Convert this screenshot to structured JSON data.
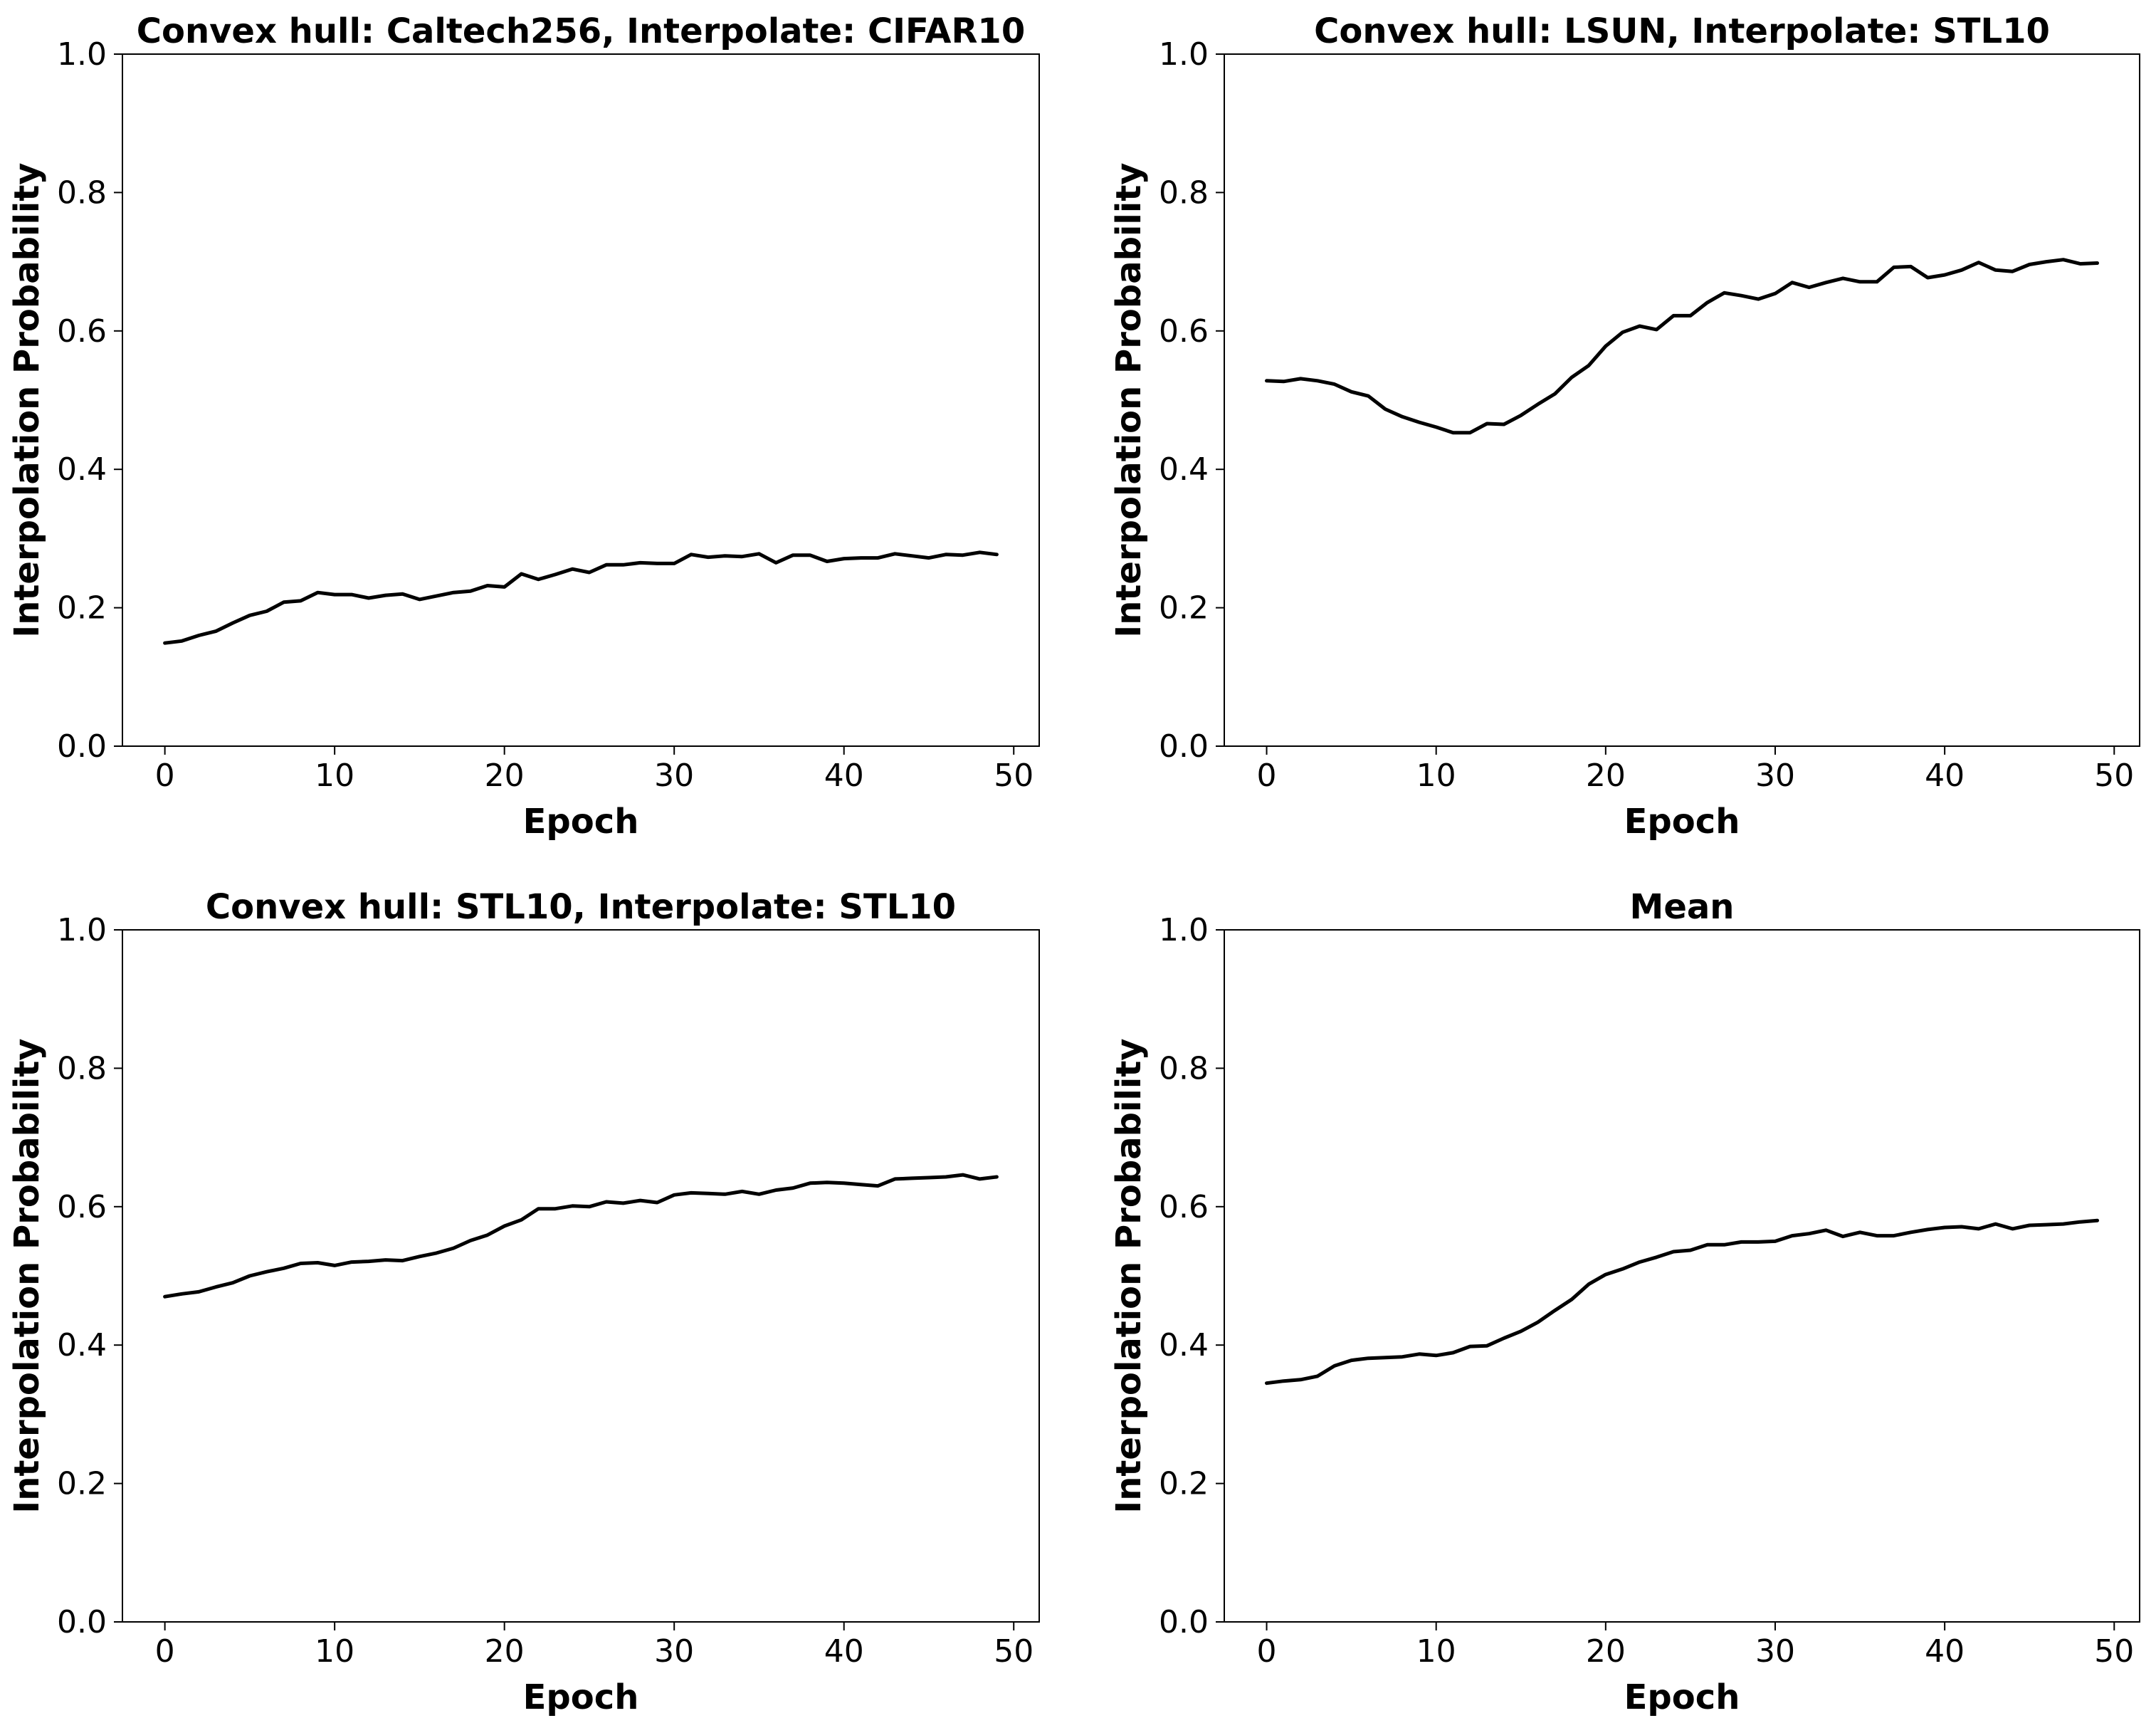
{
  "chart_data": [
    {
      "type": "line",
      "title": "Convex hull: Caltech256, Interpolate: CIFAR10",
      "xlabel": "Epoch",
      "ylabel": "Interpolation Probability",
      "xlim": [
        -2.5,
        51.5
      ],
      "ylim": [
        0.0,
        1.0
      ],
      "xticks": [
        0,
        10,
        20,
        30,
        40,
        50
      ],
      "yticks": [
        0.0,
        0.2,
        0.4,
        0.6,
        0.8,
        1.0
      ],
      "xtick_labels": [
        "0",
        "10",
        "20",
        "30",
        "40",
        "50"
      ],
      "ytick_labels": [
        "0.0",
        "0.2",
        "0.4",
        "0.6",
        "0.8",
        "1.0"
      ],
      "grid": false,
      "color": "#000000",
      "series": [
        {
          "x": [
            0,
            1,
            2,
            3,
            4,
            5,
            6,
            7,
            8,
            9,
            10,
            11,
            12,
            13,
            14,
            15,
            16,
            17,
            18,
            19,
            20,
            21,
            22,
            23,
            24,
            25,
            26,
            27,
            28,
            29,
            30,
            31,
            32,
            33,
            34,
            35,
            36,
            37,
            38,
            39,
            40,
            41,
            42,
            43,
            44,
            45,
            46,
            47,
            48,
            49
          ],
          "values": [
            0.149,
            0.152,
            0.16,
            0.166,
            0.178,
            0.189,
            0.195,
            0.208,
            0.21,
            0.222,
            0.219,
            0.219,
            0.214,
            0.218,
            0.22,
            0.212,
            0.217,
            0.222,
            0.224,
            0.232,
            0.23,
            0.249,
            0.241,
            0.248,
            0.256,
            0.251,
            0.262,
            0.262,
            0.265,
            0.264,
            0.264,
            0.277,
            0.273,
            0.275,
            0.274,
            0.278,
            0.265,
            0.276,
            0.276,
            0.267,
            0.271,
            0.272,
            0.272,
            0.278,
            0.275,
            0.272,
            0.277,
            0.276,
            0.28,
            0.277
          ]
        }
      ]
    },
    {
      "type": "line",
      "title": "Convex hull: LSUN, Interpolate: STL10",
      "xlabel": "Epoch",
      "ylabel": "Interpolation Probability",
      "xlim": [
        -2.5,
        51.5
      ],
      "ylim": [
        0.0,
        1.0
      ],
      "xticks": [
        0,
        10,
        20,
        30,
        40,
        50
      ],
      "yticks": [
        0.0,
        0.2,
        0.4,
        0.6,
        0.8,
        1.0
      ],
      "xtick_labels": [
        "0",
        "10",
        "20",
        "30",
        "40",
        "50"
      ],
      "ytick_labels": [
        "0.0",
        "0.2",
        "0.4",
        "0.6",
        "0.8",
        "1.0"
      ],
      "grid": false,
      "color": "#000000",
      "series": [
        {
          "x": [
            0,
            1,
            2,
            3,
            4,
            5,
            6,
            7,
            8,
            9,
            10,
            11,
            12,
            13,
            14,
            15,
            16,
            17,
            18,
            19,
            20,
            21,
            22,
            23,
            24,
            25,
            26,
            27,
            28,
            29,
            30,
            31,
            32,
            33,
            34,
            35,
            36,
            37,
            38,
            39,
            40,
            41,
            42,
            43,
            44,
            45,
            46,
            47,
            48,
            49
          ],
          "values": [
            0.528,
            0.527,
            0.531,
            0.528,
            0.523,
            0.512,
            0.506,
            0.487,
            0.476,
            0.468,
            0.461,
            0.453,
            0.453,
            0.466,
            0.465,
            0.478,
            0.494,
            0.509,
            0.533,
            0.55,
            0.578,
            0.598,
            0.607,
            0.602,
            0.622,
            0.622,
            0.641,
            0.655,
            0.651,
            0.646,
            0.654,
            0.67,
            0.663,
            0.67,
            0.676,
            0.671,
            0.671,
            0.692,
            0.693,
            0.677,
            0.681,
            0.688,
            0.699,
            0.688,
            0.686,
            0.696,
            0.7,
            0.703,
            0.697,
            0.698
          ]
        }
      ]
    },
    {
      "type": "line",
      "title": "Convex hull: STL10, Interpolate: STL10",
      "xlabel": "Epoch",
      "ylabel": "Interpolation Probability",
      "xlim": [
        -2.5,
        51.5
      ],
      "ylim": [
        0.0,
        1.0
      ],
      "xticks": [
        0,
        10,
        20,
        30,
        40,
        50
      ],
      "yticks": [
        0.0,
        0.2,
        0.4,
        0.6,
        0.8,
        1.0
      ],
      "xtick_labels": [
        "0",
        "10",
        "20",
        "30",
        "40",
        "50"
      ],
      "ytick_labels": [
        "0.0",
        "0.2",
        "0.4",
        "0.6",
        "0.8",
        "1.0"
      ],
      "grid": false,
      "color": "#000000",
      "series": [
        {
          "x": [
            0,
            1,
            2,
            3,
            4,
            5,
            6,
            7,
            8,
            9,
            10,
            11,
            12,
            13,
            14,
            15,
            16,
            17,
            18,
            19,
            20,
            21,
            22,
            23,
            24,
            25,
            26,
            27,
            28,
            29,
            30,
            31,
            32,
            33,
            34,
            35,
            36,
            37,
            38,
            39,
            40,
            41,
            42,
            43,
            44,
            45,
            46,
            47,
            48,
            49
          ],
          "values": [
            0.47,
            0.474,
            0.477,
            0.484,
            0.49,
            0.5,
            0.506,
            0.511,
            0.518,
            0.519,
            0.515,
            0.52,
            0.521,
            0.523,
            0.522,
            0.528,
            0.533,
            0.54,
            0.551,
            0.559,
            0.572,
            0.581,
            0.597,
            0.597,
            0.601,
            0.6,
            0.607,
            0.605,
            0.609,
            0.606,
            0.617,
            0.62,
            0.619,
            0.618,
            0.622,
            0.618,
            0.624,
            0.627,
            0.634,
            0.635,
            0.634,
            0.632,
            0.63,
            0.64,
            0.641,
            0.642,
            0.643,
            0.646,
            0.64,
            0.643
          ]
        }
      ]
    },
    {
      "type": "line",
      "title": "Mean",
      "xlabel": "Epoch",
      "ylabel": "Interpolation Probability",
      "xlim": [
        -2.5,
        51.5
      ],
      "ylim": [
        0.0,
        1.0
      ],
      "xticks": [
        0,
        10,
        20,
        30,
        40,
        50
      ],
      "yticks": [
        0.0,
        0.2,
        0.4,
        0.6,
        0.8,
        1.0
      ],
      "xtick_labels": [
        "0",
        "10",
        "20",
        "30",
        "40",
        "50"
      ],
      "ytick_labels": [
        "0.0",
        "0.2",
        "0.4",
        "0.6",
        "0.8",
        "1.0"
      ],
      "grid": false,
      "color": "#000000",
      "series": [
        {
          "x": [
            0,
            1,
            2,
            3,
            4,
            5,
            6,
            7,
            8,
            9,
            10,
            11,
            12,
            13,
            14,
            15,
            16,
            17,
            18,
            19,
            20,
            21,
            22,
            23,
            24,
            25,
            26,
            27,
            28,
            29,
            30,
            31,
            32,
            33,
            34,
            35,
            36,
            37,
            38,
            39,
            40,
            41,
            42,
            43,
            44,
            45,
            46,
            47,
            48,
            49
          ],
          "values": [
            0.345,
            0.348,
            0.35,
            0.355,
            0.37,
            0.378,
            0.381,
            0.382,
            0.383,
            0.387,
            0.385,
            0.389,
            0.398,
            0.399,
            0.41,
            0.42,
            0.433,
            0.45,
            0.466,
            0.488,
            0.502,
            0.51,
            0.52,
            0.527,
            0.535,
            0.537,
            0.545,
            0.545,
            0.549,
            0.549,
            0.55,
            0.558,
            0.561,
            0.566,
            0.557,
            0.563,
            0.558,
            0.558,
            0.563,
            0.567,
            0.57,
            0.571,
            0.568,
            0.575,
            0.568,
            0.573,
            0.574,
            0.575,
            0.578,
            0.58
          ]
        }
      ]
    }
  ]
}
